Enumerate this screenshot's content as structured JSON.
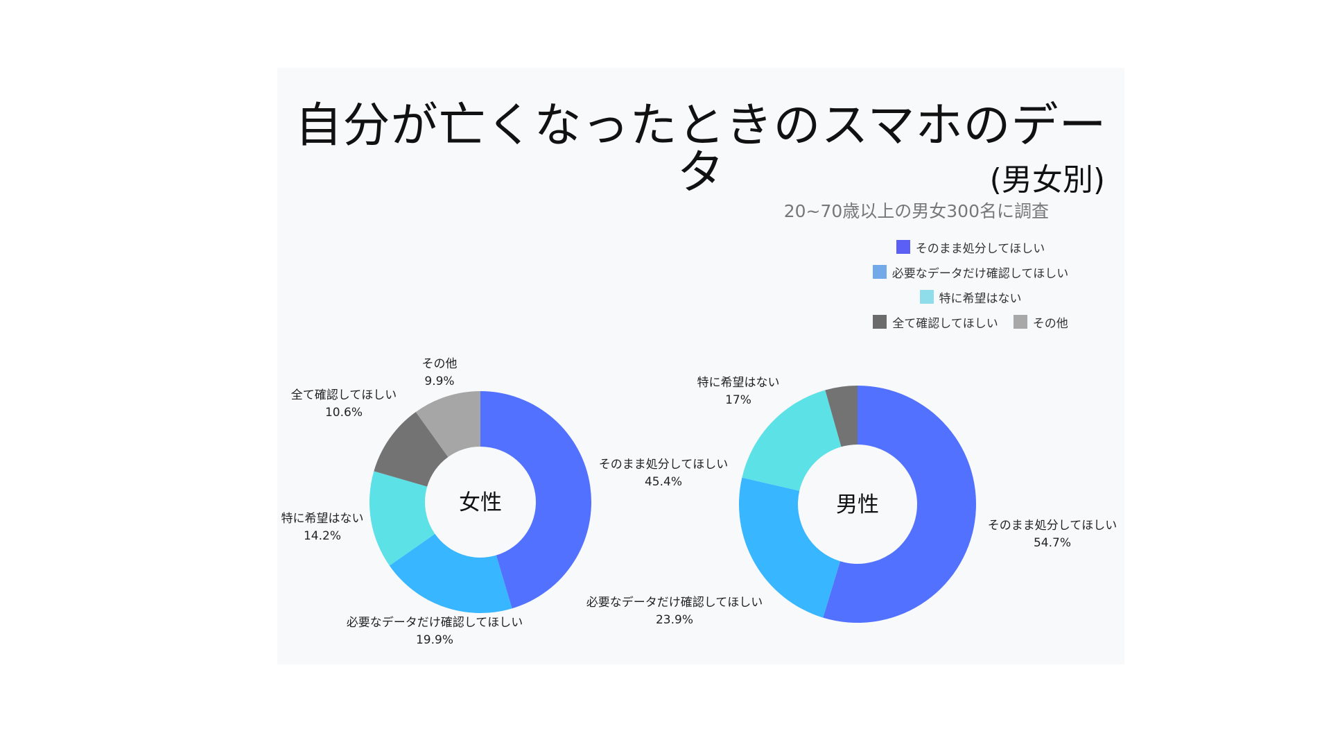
{
  "title": "自分が亡くなったときのスマホのデータ",
  "subtitle": "(男女別)",
  "note": "20~70歳以上の男女300名に調査",
  "legend": [
    {
      "label": "そのまま処分してほしい",
      "color": "#5b5ff5"
    },
    {
      "label": "必要なデータだけ確認してほしい",
      "color": "#72a9e8"
    },
    {
      "label": "特に希望はない",
      "color": "#8fdcea"
    },
    {
      "label": "全て確認してほしい",
      "color": "#6b6b6b"
    },
    {
      "label": "その他",
      "color": "#a8a8a8"
    }
  ],
  "chart_data": [
    {
      "type": "pie",
      "center_label": "女性",
      "slices": [
        {
          "label": "そのまま処分してほしい",
          "value": 45.4,
          "value_text": "45.4%",
          "color": "#5271ff"
        },
        {
          "label": "必要なデータだけ確認してほしい",
          "value": 19.9,
          "value_text": "19.9%",
          "color": "#38b6ff"
        },
        {
          "label": "特に希望はない",
          "value": 14.2,
          "value_text": "14.2%",
          "color": "#5ce1e6"
        },
        {
          "label": "全て確認してほしい",
          "value": 10.6,
          "value_text": "10.6%",
          "color": "#737373"
        },
        {
          "label": "その他",
          "value": 9.9,
          "value_text": "9.9%",
          "color": "#a6a6a6"
        }
      ]
    },
    {
      "type": "pie",
      "center_label": "男性",
      "slices": [
        {
          "label": "そのまま処分してほしい",
          "value": 54.7,
          "value_text": "54.7%",
          "color": "#5271ff"
        },
        {
          "label": "必要なデータだけ確認してほしい",
          "value": 23.9,
          "value_text": "23.9%",
          "color": "#38b6ff"
        },
        {
          "label": "特に希望はない",
          "value": 17,
          "value_text": "17%",
          "color": "#5ce1e6"
        },
        {
          "label": "全て確認してほしい",
          "value": 4.4,
          "value_text": "",
          "color": "#737373"
        }
      ]
    }
  ]
}
